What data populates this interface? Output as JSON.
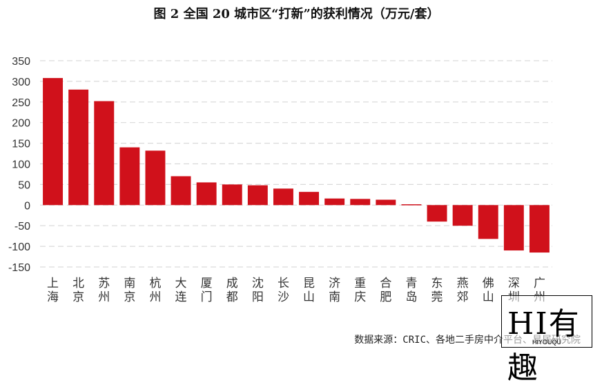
{
  "chart_data": {
    "type": "bar",
    "title": "图 2 全国 20 城市区“打新”的获利情况（万元/套）",
    "categories": [
      "上海",
      "北京",
      "苏州",
      "南京",
      "杭州",
      "大连",
      "厦门",
      "成都",
      "沈阳",
      "长沙",
      "昆山",
      "济南",
      "重庆",
      "合肥",
      "青岛",
      "东莞",
      "燕郊",
      "佛山",
      "深圳",
      "广州"
    ],
    "values": [
      308,
      280,
      252,
      140,
      132,
      70,
      55,
      50,
      48,
      40,
      32,
      16,
      15,
      13,
      2,
      -40,
      -50,
      -82,
      -110,
      -115
    ],
    "ylim": [
      -150,
      350
    ],
    "yticks": [
      350,
      300,
      250,
      200,
      150,
      100,
      50,
      0,
      -50,
      -100,
      -150
    ],
    "grid": true,
    "bar_color": "#d0111b",
    "grid_color": "#d9d9d9"
  },
  "source": "数据来源：CRIC、各地二手房中介平台、易居研究院",
  "watermark": {
    "main": "HI有趣",
    "sub": "HIYOUQU"
  }
}
